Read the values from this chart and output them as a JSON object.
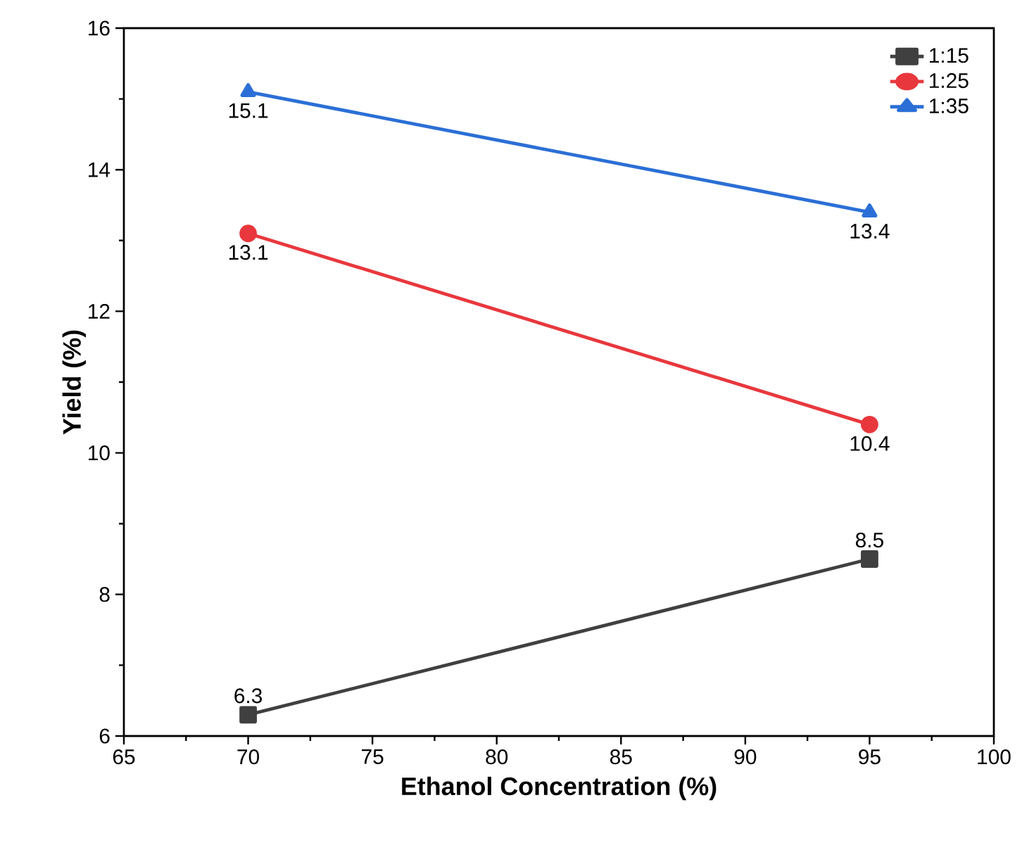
{
  "chart_data": {
    "type": "line",
    "xlabel": "Ethanol Concentration (%)",
    "ylabel": "Yield (%)",
    "x": [
      70,
      95
    ],
    "series": [
      {
        "name": "1:15",
        "color": "#404040",
        "values": [
          6.3,
          8.5
        ],
        "marker": "square"
      },
      {
        "name": "1:25",
        "color": "#e8383d",
        "values": [
          13.1,
          10.4
        ],
        "marker": "circle"
      },
      {
        "name": "1:35",
        "color": "#2b6fd6",
        "values": [
          15.1,
          13.4
        ],
        "marker": "triangle"
      }
    ],
    "xlim": [
      65,
      100
    ],
    "xticks": [
      65,
      70,
      75,
      80,
      85,
      90,
      95,
      100
    ],
    "ylim": [
      6,
      16
    ],
    "yticks": [
      6,
      8,
      10,
      12,
      14,
      16
    ],
    "grid": false,
    "legend": "top right",
    "data_labels": true,
    "line_style": "solid"
  }
}
